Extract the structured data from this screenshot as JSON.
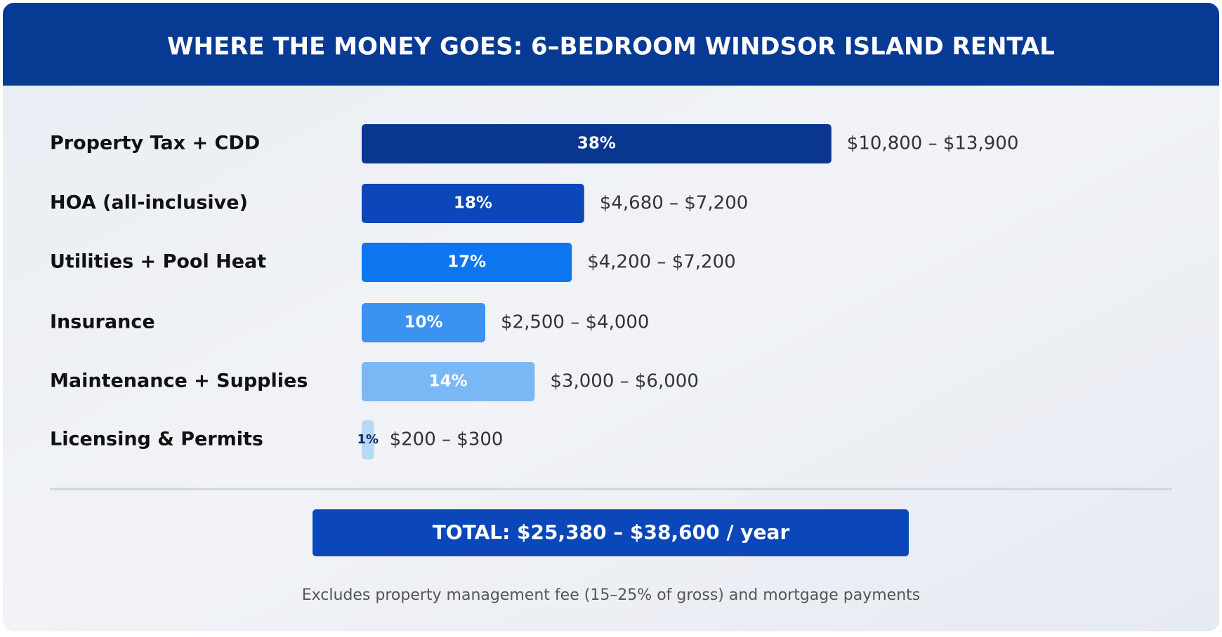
{
  "chart_data": {
    "type": "bar",
    "orientation": "horizontal",
    "title": "WHERE THE MONEY GOES: 6–BEDROOM WINDSOR ISLAND RENTAL",
    "categories": [
      "Property Tax + CDD",
      "HOA (all-inclusive)",
      "Utilities + Pool Heat",
      "Insurance",
      "Maintenance + Supplies",
      "Licensing & Permits"
    ],
    "values": [
      38,
      18,
      17,
      10,
      14,
      1
    ],
    "value_labels": [
      "38%",
      "18%",
      "17%",
      "10%",
      "14%",
      "1%"
    ],
    "ranges": [
      "$10,800 – $13,900",
      "$4,680 – $7,200",
      "$4,200 – $7,200",
      "$2,500 – $4,000",
      "$3,000 – $6,000",
      "$200 – $300"
    ],
    "colors": [
      "#083691",
      "#0b47b8",
      "#0d75ef",
      "#3c92f0",
      "#7ab8f5",
      "#b6d9f8"
    ],
    "total": "TOTAL: $25,380 – $38,600 / year",
    "footnote": "Excludes property management fee (15–25% of gross) and mortgage payments"
  }
}
